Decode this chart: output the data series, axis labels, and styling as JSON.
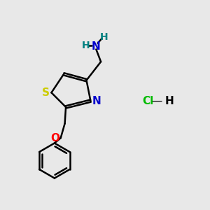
{
  "bg_color": "#e8e8e8",
  "bond_color": "#000000",
  "N_color": "#0000cc",
  "S_color": "#cccc00",
  "O_color": "#ff0000",
  "H_color": "#008080",
  "Cl_color": "#00bb00",
  "line_width": 1.8,
  "figsize": [
    3.0,
    3.0
  ],
  "dpi": 100,
  "xlim": [
    0,
    10
  ],
  "ylim": [
    0,
    10
  ]
}
